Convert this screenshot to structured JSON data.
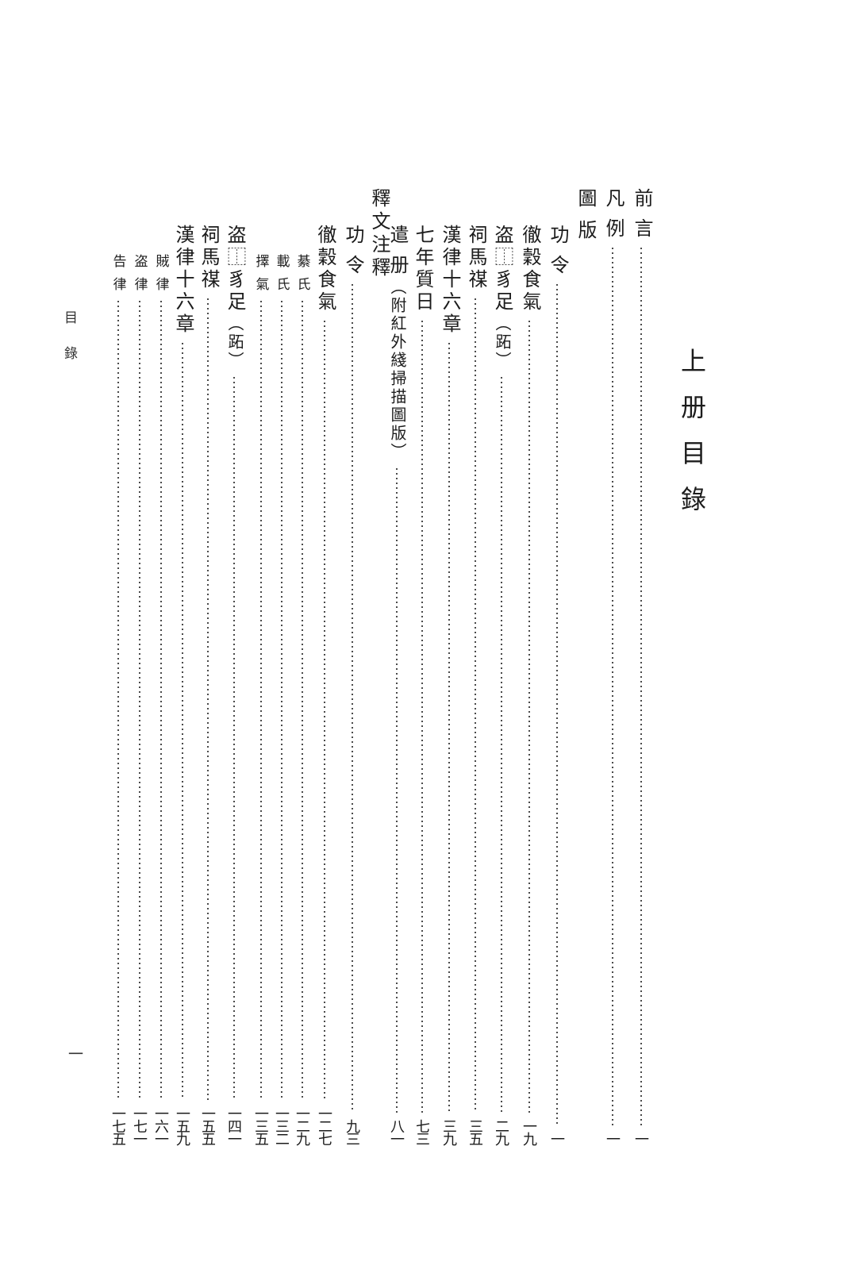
{
  "page": {
    "volume_title": "上册目錄",
    "margin_header": "目錄",
    "folio_number": "一",
    "ink_color": "#1c1c1c",
    "leader_dot_color": "#4a4a4a",
    "background": "#ffffff"
  },
  "toc": {
    "front_matter": [
      {
        "title": "前 言",
        "page": "一"
      },
      {
        "title": "凡 例",
        "page": "一"
      }
    ],
    "sections": [
      {
        "heading": "圖 版",
        "entries": [
          {
            "title": "功 令",
            "page": "一"
          },
          {
            "title": "徹穀食氣",
            "page": "一九"
          },
          {
            "title": "盗⿰豸足",
            "note": "（跖）",
            "page": "二九"
          },
          {
            "title": "祠馬禖",
            "page": "三五"
          },
          {
            "title": "漢律十六章",
            "page": "三九"
          },
          {
            "title": "七年質日",
            "page": "七三"
          },
          {
            "title": "遣 册",
            "note": "（附紅外綫掃描圖版）",
            "page": "八一"
          }
        ]
      },
      {
        "heading": "釋文注釋",
        "entries": [
          {
            "title": "功 令",
            "page": "九三"
          },
          {
            "title": "徹穀食氣",
            "page": "一二七"
          },
          {
            "title": "綦 氏",
            "page": "一二九",
            "sub": true
          },
          {
            "title": "載 氏",
            "page": "一三二",
            "sub": true
          },
          {
            "title": "擇 氣",
            "page": "一三五",
            "sub": true
          },
          {
            "title": "盗⿰豸足",
            "note": "（跖）",
            "page": "一四一"
          },
          {
            "title": "祠馬禖",
            "page": "一五五"
          },
          {
            "title": "漢律十六章",
            "page": "一五九"
          },
          {
            "title": "賊 律",
            "page": "一六一",
            "sub": true
          },
          {
            "title": "盗 律",
            "page": "一七一",
            "sub": true
          },
          {
            "title": "告 律",
            "page": "一七五",
            "sub": true
          }
        ]
      }
    ]
  }
}
